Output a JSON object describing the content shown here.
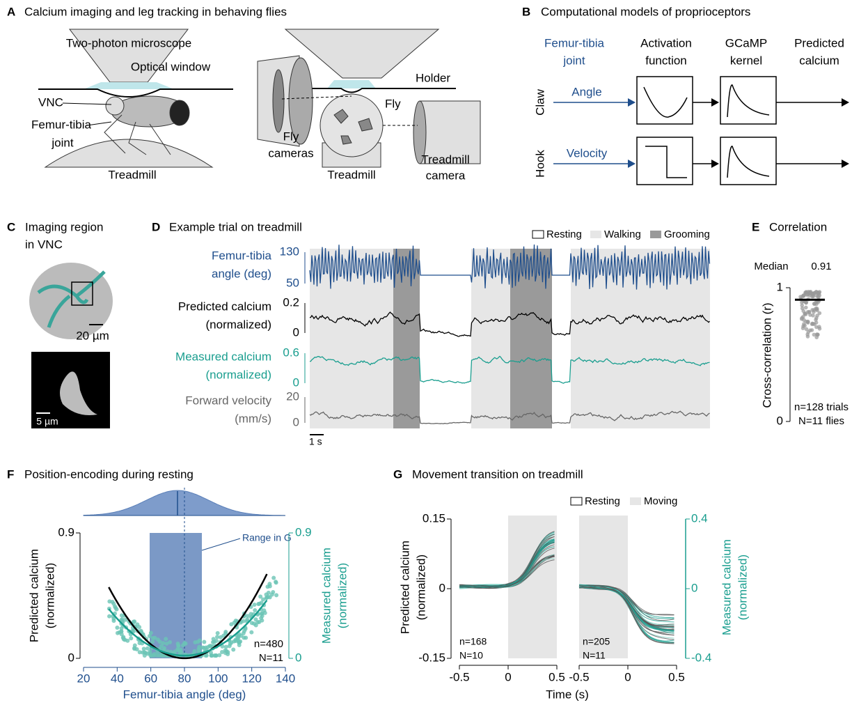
{
  "A": {
    "letter": "A",
    "title": "Calcium imaging and leg tracking in behaving flies",
    "microscope": "Two-photon microscope",
    "window": "Optical window",
    "vnc": "VNC",
    "joint": [
      "Femur-tibia",
      "joint"
    ],
    "treadmill": "Treadmill",
    "holder": "Holder",
    "fly": "Fly",
    "fly_cameras": [
      "Fly",
      "cameras"
    ],
    "treadmill2": "Treadmill",
    "treadmill_camera": [
      "Treadmill",
      "camera"
    ]
  },
  "B": {
    "letter": "B",
    "title": "Computational models of proprioceptors",
    "headers": [
      [
        "Femur-tibia",
        "joint"
      ],
      [
        "Activation",
        "function"
      ],
      [
        "GCaMP",
        "kernel"
      ],
      [
        "Predicted",
        "calcium"
      ]
    ],
    "rows": [
      {
        "name": "Claw",
        "input": "Angle"
      },
      {
        "name": "Hook",
        "input": "Velocity"
      }
    ]
  },
  "C": {
    "letter": "C",
    "title": [
      "Imaging region",
      "in VNC"
    ],
    "scales": [
      "20 µm",
      "5 µm"
    ]
  },
  "D": {
    "letter": "D",
    "title": "Example trial on treadmill",
    "legend": [
      "Resting",
      "Walking",
      "Grooming"
    ],
    "traces": [
      {
        "label": [
          "Femur-tibia",
          "angle (deg)"
        ],
        "ticks": [
          130,
          50
        ],
        "color": "#1f4e8c"
      },
      {
        "label": [
          "Predicted calcium",
          "(normalized)"
        ],
        "ticks": [
          0.2,
          0
        ],
        "color": "#000000"
      },
      {
        "label": [
          "Measured calcium",
          "(normalized)"
        ],
        "ticks": [
          0.6,
          0
        ],
        "color": "#1a9e8f"
      },
      {
        "label": [
          "Forward velocity",
          "(mm/s)"
        ],
        "ticks": [
          20,
          0
        ],
        "color": "#666666"
      }
    ],
    "scale": "1 s"
  },
  "E": {
    "letter": "E",
    "title": "Correlation",
    "median_label": "Median",
    "median": 0.91,
    "ylabel": "Cross-correlation (r)",
    "ylim": [
      0,
      1
    ],
    "yticks": [
      0,
      1
    ],
    "n": [
      "n=128 trials",
      "N=11 flies"
    ]
  },
  "F": {
    "letter": "F",
    "title": "Position-encoding during resting",
    "ylabel": [
      "Predicted calcium",
      "(normalized)"
    ],
    "y2label": [
      "Measured calcium",
      "(normalized)"
    ],
    "xlabel": "Femur-tibia angle (deg)",
    "xlim": [
      20,
      140
    ],
    "xticks": [
      20,
      40,
      60,
      80,
      100,
      120,
      140
    ],
    "ylim": [
      0,
      0.9
    ],
    "yticks": [
      0,
      0.9
    ],
    "y2lim": [
      0,
      0.9
    ],
    "y2ticks": [
      0,
      0.9
    ],
    "annotation": "Range in G",
    "n": [
      "n=480",
      "N=11"
    ]
  },
  "G": {
    "letter": "G",
    "title": "Movement transition on treadmill",
    "legend": [
      "Resting",
      "Moving"
    ],
    "xlim": [
      -0.5,
      0.5
    ],
    "xticks": [
      -0.5,
      0,
      0.5
    ],
    "ylim": [
      -0.15,
      0.15
    ],
    "yticks": [
      -0.15,
      0,
      0.15
    ],
    "y2lim": [
      -0.4,
      0.4
    ],
    "y2ticks": [
      -0.4,
      0,
      0.4
    ],
    "xlabel": "Time (s)",
    "ylabel": [
      "Predicted calcium",
      "(normalized)"
    ],
    "y2label": [
      "Measured calcium",
      "(normalized)"
    ],
    "n": [
      [
        "n=168",
        "N=10"
      ],
      [
        "n=205",
        "N=11"
      ]
    ]
  }
}
